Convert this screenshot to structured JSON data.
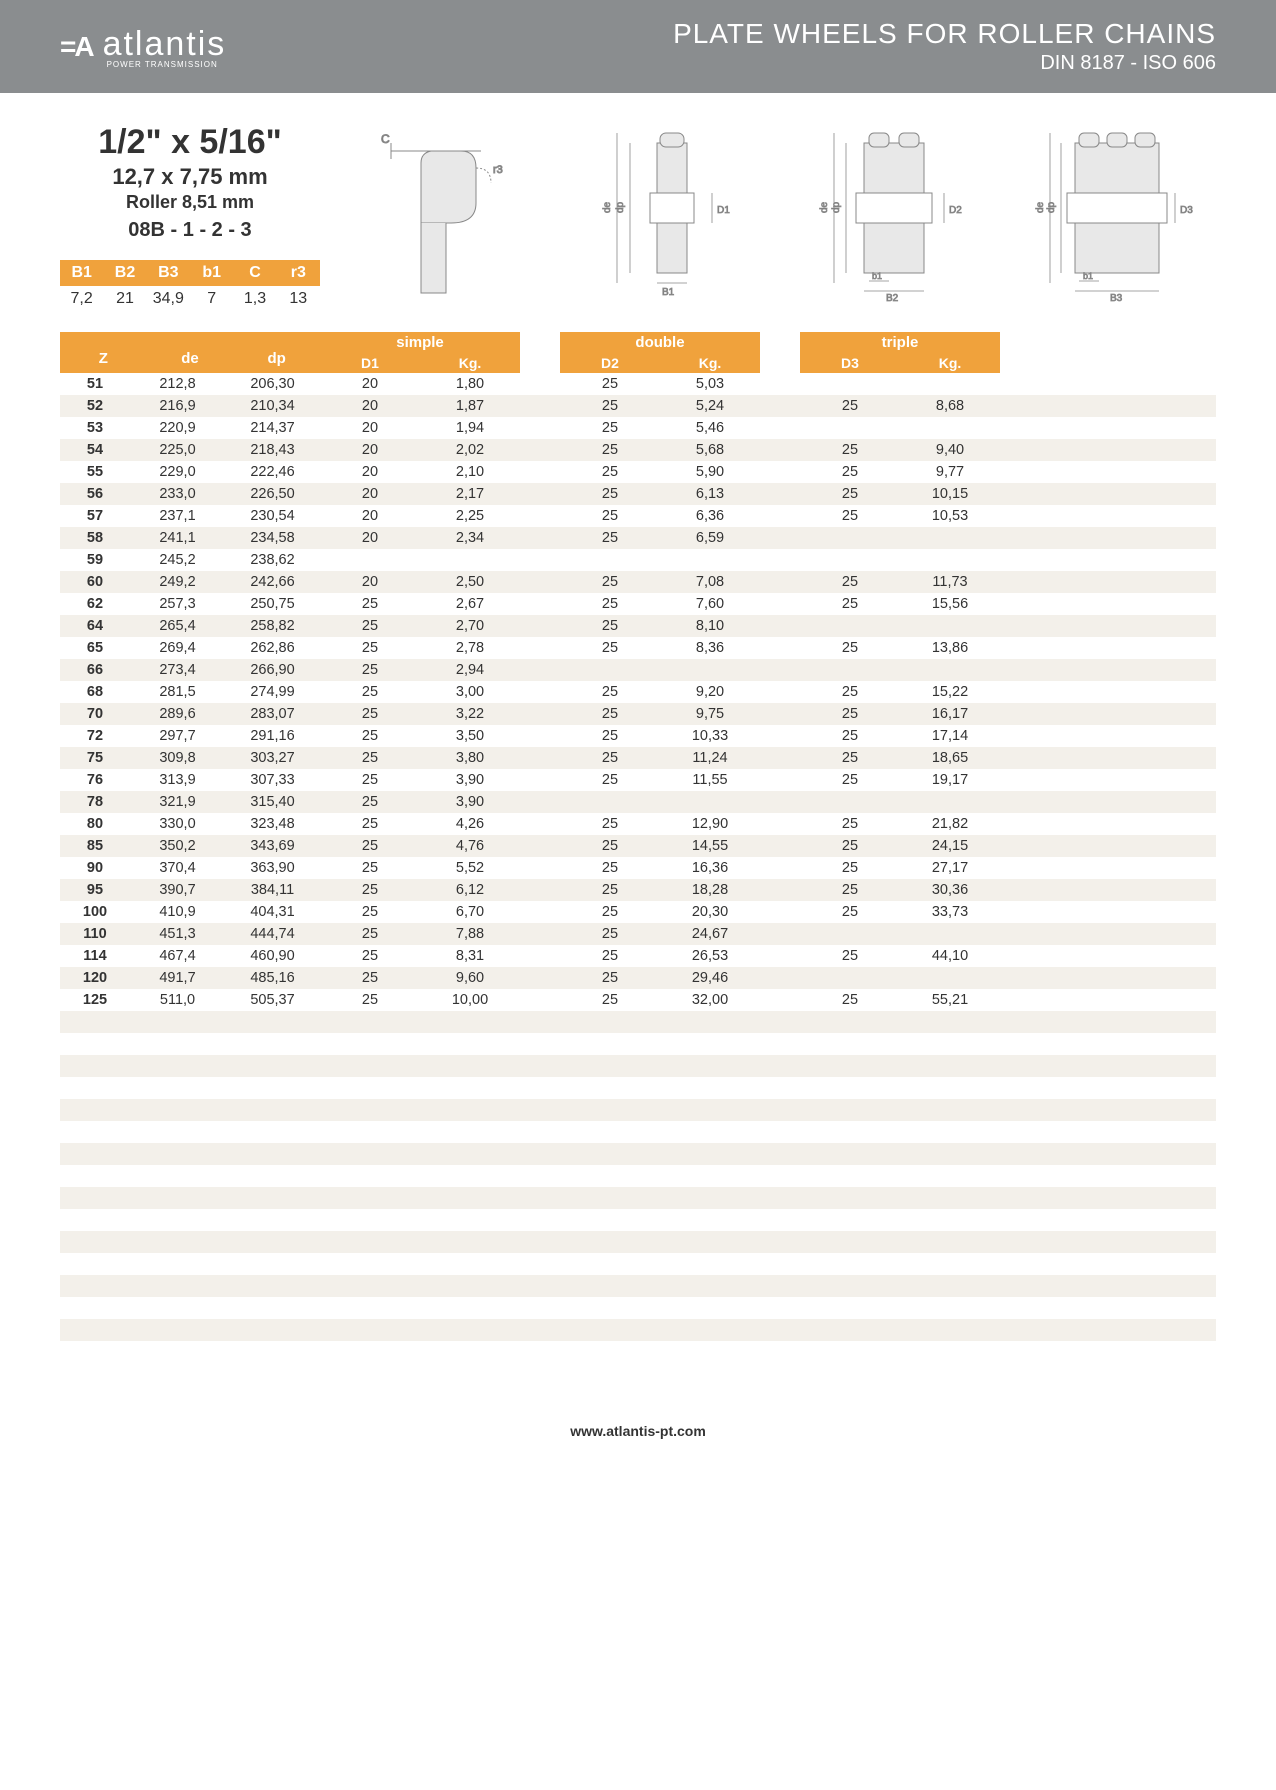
{
  "header": {
    "brand_mark": "=A",
    "brand_name": "atlantis",
    "brand_sub": "POWER TRANSMISSION",
    "title": "PLATE WHEELS FOR ROLLER CHAINS",
    "subtitle": "DIN 8187 - ISO 606"
  },
  "spec": {
    "l1": "1/2\" x 5/16\"",
    "l2": "12,7 x 7,75 mm",
    "l3": "Roller 8,51 mm",
    "l4": "08B - 1 - 2 - 3"
  },
  "small_table": {
    "headers": [
      "B1",
      "B2",
      "B3",
      "b1",
      "C",
      "r3"
    ],
    "values": [
      "7,2",
      "21",
      "34,9",
      "7",
      "1,3",
      "13"
    ]
  },
  "diag_labels": {
    "c": "C",
    "r3": "r3",
    "de": "de",
    "dp": "dp",
    "D1": "D1",
    "D2": "D2",
    "D3": "D3",
    "b1": "b1",
    "B1": "B1",
    "B2": "B2",
    "B3": "B3"
  },
  "colors": {
    "header_bg": "#8a8d8f",
    "accent": "#f0a23c",
    "row_alt": "#f3f0ea"
  },
  "main_table": {
    "group_z_headers": [
      "Z",
      "de",
      "dp"
    ],
    "group_simple": {
      "title": "simple",
      "sub": [
        "D1",
        "Kg."
      ]
    },
    "group_double": {
      "title": "double",
      "sub": [
        "D2",
        "Kg."
      ]
    },
    "group_triple": {
      "title": "triple",
      "sub": [
        "D3",
        "Kg."
      ]
    },
    "rows": [
      {
        "z": "51",
        "de": "212,8",
        "dp": "206,30",
        "d1": "20",
        "kg1": "1,80",
        "d2": "25",
        "kg2": "5,03",
        "d3": "",
        "kg3": ""
      },
      {
        "z": "52",
        "de": "216,9",
        "dp": "210,34",
        "d1": "20",
        "kg1": "1,87",
        "d2": "25",
        "kg2": "5,24",
        "d3": "25",
        "kg3": "8,68"
      },
      {
        "z": "53",
        "de": "220,9",
        "dp": "214,37",
        "d1": "20",
        "kg1": "1,94",
        "d2": "25",
        "kg2": "5,46",
        "d3": "",
        "kg3": ""
      },
      {
        "z": "54",
        "de": "225,0",
        "dp": "218,43",
        "d1": "20",
        "kg1": "2,02",
        "d2": "25",
        "kg2": "5,68",
        "d3": "25",
        "kg3": "9,40"
      },
      {
        "z": "55",
        "de": "229,0",
        "dp": "222,46",
        "d1": "20",
        "kg1": "2,10",
        "d2": "25",
        "kg2": "5,90",
        "d3": "25",
        "kg3": "9,77"
      },
      {
        "z": "56",
        "de": "233,0",
        "dp": "226,50",
        "d1": "20",
        "kg1": "2,17",
        "d2": "25",
        "kg2": "6,13",
        "d3": "25",
        "kg3": "10,15"
      },
      {
        "z": "57",
        "de": "237,1",
        "dp": "230,54",
        "d1": "20",
        "kg1": "2,25",
        "d2": "25",
        "kg2": "6,36",
        "d3": "25",
        "kg3": "10,53"
      },
      {
        "z": "58",
        "de": "241,1",
        "dp": "234,58",
        "d1": "20",
        "kg1": "2,34",
        "d2": "25",
        "kg2": "6,59",
        "d3": "",
        "kg3": ""
      },
      {
        "z": "59",
        "de": "245,2",
        "dp": "238,62",
        "d1": "",
        "kg1": "",
        "d2": "",
        "kg2": "",
        "d3": "",
        "kg3": ""
      },
      {
        "z": "60",
        "de": "249,2",
        "dp": "242,66",
        "d1": "20",
        "kg1": "2,50",
        "d2": "25",
        "kg2": "7,08",
        "d3": "25",
        "kg3": "11,73"
      },
      {
        "z": "62",
        "de": "257,3",
        "dp": "250,75",
        "d1": "25",
        "kg1": "2,67",
        "d2": "25",
        "kg2": "7,60",
        "d3": "25",
        "kg3": "15,56"
      },
      {
        "z": "64",
        "de": "265,4",
        "dp": "258,82",
        "d1": "25",
        "kg1": "2,70",
        "d2": "25",
        "kg2": "8,10",
        "d3": "",
        "kg3": ""
      },
      {
        "z": "65",
        "de": "269,4",
        "dp": "262,86",
        "d1": "25",
        "kg1": "2,78",
        "d2": "25",
        "kg2": "8,36",
        "d3": "25",
        "kg3": "13,86"
      },
      {
        "z": "66",
        "de": "273,4",
        "dp": "266,90",
        "d1": "25",
        "kg1": "2,94",
        "d2": "",
        "kg2": "",
        "d3": "",
        "kg3": ""
      },
      {
        "z": "68",
        "de": "281,5",
        "dp": "274,99",
        "d1": "25",
        "kg1": "3,00",
        "d2": "25",
        "kg2": "9,20",
        "d3": "25",
        "kg3": "15,22"
      },
      {
        "z": "70",
        "de": "289,6",
        "dp": "283,07",
        "d1": "25",
        "kg1": "3,22",
        "d2": "25",
        "kg2": "9,75",
        "d3": "25",
        "kg3": "16,17"
      },
      {
        "z": "72",
        "de": "297,7",
        "dp": "291,16",
        "d1": "25",
        "kg1": "3,50",
        "d2": "25",
        "kg2": "10,33",
        "d3": "25",
        "kg3": "17,14"
      },
      {
        "z": "75",
        "de": "309,8",
        "dp": "303,27",
        "d1": "25",
        "kg1": "3,80",
        "d2": "25",
        "kg2": "11,24",
        "d3": "25",
        "kg3": "18,65"
      },
      {
        "z": "76",
        "de": "313,9",
        "dp": "307,33",
        "d1": "25",
        "kg1": "3,90",
        "d2": "25",
        "kg2": "11,55",
        "d3": "25",
        "kg3": "19,17"
      },
      {
        "z": "78",
        "de": "321,9",
        "dp": "315,40",
        "d1": "25",
        "kg1": "3,90",
        "d2": "",
        "kg2": "",
        "d3": "",
        "kg3": ""
      },
      {
        "z": "80",
        "de": "330,0",
        "dp": "323,48",
        "d1": "25",
        "kg1": "4,26",
        "d2": "25",
        "kg2": "12,90",
        "d3": "25",
        "kg3": "21,82"
      },
      {
        "z": "85",
        "de": "350,2",
        "dp": "343,69",
        "d1": "25",
        "kg1": "4,76",
        "d2": "25",
        "kg2": "14,55",
        "d3": "25",
        "kg3": "24,15"
      },
      {
        "z": "90",
        "de": "370,4",
        "dp": "363,90",
        "d1": "25",
        "kg1": "5,52",
        "d2": "25",
        "kg2": "16,36",
        "d3": "25",
        "kg3": "27,17"
      },
      {
        "z": "95",
        "de": "390,7",
        "dp": "384,11",
        "d1": "25",
        "kg1": "6,12",
        "d2": "25",
        "kg2": "18,28",
        "d3": "25",
        "kg3": "30,36"
      },
      {
        "z": "100",
        "de": "410,9",
        "dp": "404,31",
        "d1": "25",
        "kg1": "6,70",
        "d2": "25",
        "kg2": "20,30",
        "d3": "25",
        "kg3": "33,73"
      },
      {
        "z": "110",
        "de": "451,3",
        "dp": "444,74",
        "d1": "25",
        "kg1": "7,88",
        "d2": "25",
        "kg2": "24,67",
        "d3": "",
        "kg3": ""
      },
      {
        "z": "114",
        "de": "467,4",
        "dp": "460,90",
        "d1": "25",
        "kg1": "8,31",
        "d2": "25",
        "kg2": "26,53",
        "d3": "25",
        "kg3": "44,10"
      },
      {
        "z": "120",
        "de": "491,7",
        "dp": "485,16",
        "d1": "25",
        "kg1": "9,60",
        "d2": "25",
        "kg2": "29,46",
        "d3": "",
        "kg3": ""
      },
      {
        "z": "125",
        "de": "511,0",
        "dp": "505,37",
        "d1": "25",
        "kg1": "10,00",
        "d2": "25",
        "kg2": "32,00",
        "d3": "25",
        "kg3": "55,21"
      },
      {
        "z": "",
        "de": "",
        "dp": "",
        "d1": "",
        "kg1": "",
        "d2": "",
        "kg2": "",
        "d3": "",
        "kg3": ""
      },
      {
        "z": "",
        "de": "",
        "dp": "",
        "d1": "",
        "kg1": "",
        "d2": "",
        "kg2": "",
        "d3": "",
        "kg3": ""
      },
      {
        "z": "",
        "de": "",
        "dp": "",
        "d1": "",
        "kg1": "",
        "d2": "",
        "kg2": "",
        "d3": "",
        "kg3": ""
      },
      {
        "z": "",
        "de": "",
        "dp": "",
        "d1": "",
        "kg1": "",
        "d2": "",
        "kg2": "",
        "d3": "",
        "kg3": ""
      },
      {
        "z": "",
        "de": "",
        "dp": "",
        "d1": "",
        "kg1": "",
        "d2": "",
        "kg2": "",
        "d3": "",
        "kg3": ""
      },
      {
        "z": "",
        "de": "",
        "dp": "",
        "d1": "",
        "kg1": "",
        "d2": "",
        "kg2": "",
        "d3": "",
        "kg3": ""
      },
      {
        "z": "",
        "de": "",
        "dp": "",
        "d1": "",
        "kg1": "",
        "d2": "",
        "kg2": "",
        "d3": "",
        "kg3": ""
      },
      {
        "z": "",
        "de": "",
        "dp": "",
        "d1": "",
        "kg1": "",
        "d2": "",
        "kg2": "",
        "d3": "",
        "kg3": ""
      },
      {
        "z": "",
        "de": "",
        "dp": "",
        "d1": "",
        "kg1": "",
        "d2": "",
        "kg2": "",
        "d3": "",
        "kg3": ""
      },
      {
        "z": "",
        "de": "",
        "dp": "",
        "d1": "",
        "kg1": "",
        "d2": "",
        "kg2": "",
        "d3": "",
        "kg3": ""
      },
      {
        "z": "",
        "de": "",
        "dp": "",
        "d1": "",
        "kg1": "",
        "d2": "",
        "kg2": "",
        "d3": "",
        "kg3": ""
      },
      {
        "z": "",
        "de": "",
        "dp": "",
        "d1": "",
        "kg1": "",
        "d2": "",
        "kg2": "",
        "d3": "",
        "kg3": ""
      },
      {
        "z": "",
        "de": "",
        "dp": "",
        "d1": "",
        "kg1": "",
        "d2": "",
        "kg2": "",
        "d3": "",
        "kg3": ""
      },
      {
        "z": "",
        "de": "",
        "dp": "",
        "d1": "",
        "kg1": "",
        "d2": "",
        "kg2": "",
        "d3": "",
        "kg3": ""
      },
      {
        "z": "",
        "de": "",
        "dp": "",
        "d1": "",
        "kg1": "",
        "d2": "",
        "kg2": "",
        "d3": "",
        "kg3": ""
      },
      {
        "z": "",
        "de": "",
        "dp": "",
        "d1": "",
        "kg1": "",
        "d2": "",
        "kg2": "",
        "d3": "",
        "kg3": ""
      }
    ]
  },
  "footer": {
    "url": "www.atlantis-pt.com"
  }
}
